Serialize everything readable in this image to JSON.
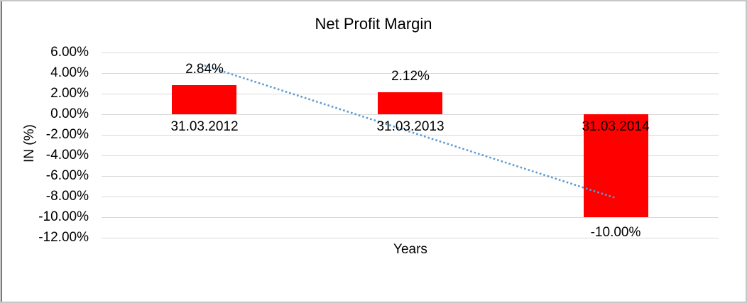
{
  "chart_data": {
    "type": "bar",
    "title": "Net Profit Margin",
    "xlabel": "Years",
    "ylabel": "IN (%)",
    "categories": [
      "31.03.2012",
      "31.03.2013",
      "31.03.2014"
    ],
    "values": [
      2.84,
      2.12,
      -10.0
    ],
    "data_labels": [
      "2.84%",
      "2.12%",
      "-10.00%"
    ],
    "ylim": [
      -12,
      6
    ],
    "yticks": [
      6,
      4,
      2,
      0,
      -2,
      -4,
      -6,
      -8,
      -10,
      -12
    ],
    "ytick_labels": [
      "6.00%",
      "4.00%",
      "2.00%",
      "0.00%",
      "-2.00%",
      "-4.00%",
      "-6.00%",
      "-8.00%",
      "-10.00%",
      "-12.00%"
    ],
    "grid": true,
    "legend": "none",
    "bar_color": "#fe0000",
    "gridline_color": "#d9d9d9",
    "text_color": "#000000",
    "trendline": {
      "type": "linear",
      "style": "dotted",
      "color": "#5b9bd5",
      "start_value_pct": 4.74,
      "end_value_pct": -8.14
    }
  }
}
